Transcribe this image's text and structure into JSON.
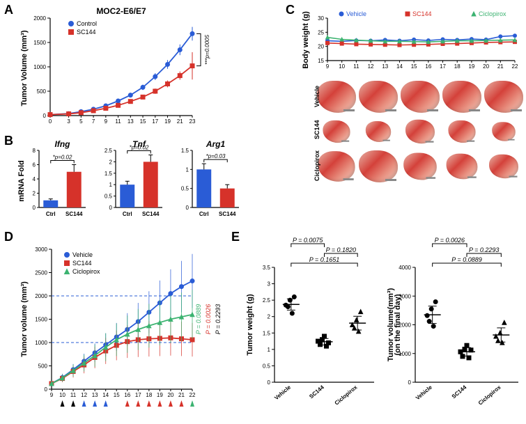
{
  "panelLabels": {
    "A": "A",
    "B": "B",
    "C": "C",
    "D": "D",
    "E": "E"
  },
  "colors": {
    "control": "#2a5cd6",
    "sc144": "#d6322a",
    "ciclopirox": "#3cb371",
    "axis": "#000000",
    "bg": "#ffffff"
  },
  "panelA": {
    "title": "MOC2-E6/E7",
    "ylabel": "Tumor Volume (mm³)",
    "ylim": [
      0,
      2000
    ],
    "ytick": 500,
    "x": [
      0,
      3,
      5,
      7,
      9,
      11,
      13,
      15,
      17,
      19,
      21,
      23
    ],
    "series": [
      {
        "name": "Control",
        "color": "#2a5cd6",
        "marker": "circle",
        "y": [
          20,
          40,
          80,
          130,
          200,
          300,
          420,
          580,
          800,
          1050,
          1350,
          1680
        ],
        "err": [
          5,
          8,
          12,
          18,
          25,
          35,
          45,
          55,
          70,
          90,
          110,
          140
        ]
      },
      {
        "name": "SC144",
        "color": "#d6322a",
        "marker": "square",
        "y": [
          20,
          35,
          60,
          100,
          150,
          210,
          290,
          380,
          500,
          650,
          820,
          1020
        ],
        "err": [
          5,
          7,
          10,
          15,
          20,
          28,
          35,
          45,
          55,
          70,
          85,
          280
        ]
      }
    ],
    "pval": "***p=0.0005"
  },
  "panelB": {
    "ylabel": "mRNA Fold",
    "xcats": [
      "Ctrl",
      "SC144"
    ],
    "charts": [
      {
        "title": "Ifng",
        "ylim": [
          0,
          8
        ],
        "ytick": 2,
        "vals": [
          1.0,
          5.0
        ],
        "err": [
          0.2,
          1.0
        ],
        "p": "*p=0.02"
      },
      {
        "title": "Tnf",
        "ylim": [
          0,
          2.5
        ],
        "ytick": 0.5,
        "vals": [
          1.0,
          2.0
        ],
        "err": [
          0.15,
          0.3
        ],
        "p": "*p=0.02"
      },
      {
        "title": "Arg1",
        "ylim": [
          0,
          1.5
        ],
        "ytick": 0.5,
        "vals": [
          1.0,
          0.5
        ],
        "err": [
          0.15,
          0.1
        ],
        "p": "*p=0.03"
      }
    ],
    "barColors": [
      "#2a5cd6",
      "#d6322a"
    ]
  },
  "panelC": {
    "bw": {
      "ylabel": "Body weight (g)",
      "ylim": [
        15,
        30
      ],
      "ytick": 5,
      "x": [
        9,
        10,
        11,
        12,
        13,
        14,
        15,
        16,
        17,
        18,
        19,
        20,
        21,
        22
      ],
      "series": [
        {
          "name": "Vehicle",
          "color": "#2a5cd6",
          "marker": "circle",
          "y": [
            22.0,
            21.8,
            22.1,
            22.0,
            22.3,
            22.0,
            22.4,
            22.1,
            22.5,
            22.3,
            22.6,
            22.4,
            23.5,
            23.8
          ]
        },
        {
          "name": "SC144",
          "color": "#d6322a",
          "marker": "square",
          "y": [
            21.2,
            21.0,
            20.8,
            20.7,
            20.6,
            20.5,
            20.6,
            20.7,
            20.9,
            21.0,
            21.2,
            21.4,
            21.5,
            21.6
          ]
        },
        {
          "name": "Ciclopirox",
          "color": "#3cb371",
          "marker": "triangle",
          "y": [
            23.2,
            22.5,
            22.2,
            22.0,
            21.8,
            21.8,
            21.7,
            21.6,
            21.8,
            22.0,
            22.0,
            22.1,
            22.2,
            22.3
          ]
        }
      ]
    },
    "rows": [
      "Vehicle",
      "SC144",
      "Ciclopirox"
    ]
  },
  "panelD": {
    "ylabel": "Tumor volume (mm³)",
    "ylim": [
      0,
      3000
    ],
    "ytick": 500,
    "x": [
      9,
      10,
      11,
      12,
      13,
      14,
      15,
      16,
      17,
      18,
      19,
      20,
      21,
      22
    ],
    "refLines": [
      1000,
      2000
    ],
    "series": [
      {
        "name": "Vehicle",
        "color": "#2a5cd6",
        "marker": "circle",
        "y": [
          120,
          250,
          420,
          600,
          780,
          950,
          1120,
          1280,
          1450,
          1650,
          1850,
          2050,
          2200,
          2320
        ],
        "err": [
          50,
          80,
          120,
          160,
          200,
          250,
          300,
          350,
          400,
          450,
          480,
          520,
          550,
          580
        ]
      },
      {
        "name": "SC144",
        "color": "#d6322a",
        "marker": "square",
        "y": [
          120,
          230,
          380,
          520,
          680,
          820,
          940,
          1020,
          1060,
          1080,
          1090,
          1100,
          1080,
          1060
        ],
        "err": [
          50,
          80,
          130,
          180,
          230,
          280,
          320,
          350,
          370,
          380,
          380,
          380,
          370,
          360
        ]
      },
      {
        "name": "Ciclopirox",
        "color": "#3cb371",
        "marker": "triangle",
        "y": [
          120,
          240,
          400,
          560,
          720,
          900,
          1060,
          1180,
          1280,
          1360,
          1430,
          1500,
          1550,
          1600
        ],
        "err": [
          50,
          80,
          130,
          180,
          240,
          300,
          350,
          400,
          440,
          470,
          490,
          510,
          520,
          530
        ]
      }
    ],
    "pvals": [
      {
        "text": "P = 0.0889",
        "color": "#3cb371"
      },
      {
        "text": "P = 0.0026",
        "color": "#d6322a"
      },
      {
        "text": "P = 0.2293",
        "color": "#000000"
      }
    ],
    "arrows": [
      {
        "x": 10,
        "color": "#000"
      },
      {
        "x": 11,
        "color": "#000"
      },
      {
        "x": 12,
        "color": "#2a5cd6"
      },
      {
        "x": 13,
        "color": "#2a5cd6"
      },
      {
        "x": 14,
        "color": "#2a5cd6"
      },
      {
        "x": 16,
        "color": "#d6322a"
      },
      {
        "x": 17,
        "color": "#d6322a"
      },
      {
        "x": 18,
        "color": "#d6322a"
      },
      {
        "x": 19,
        "color": "#d6322a"
      },
      {
        "x": 20,
        "color": "#d6322a"
      },
      {
        "x": 21,
        "color": "#d6322a"
      },
      {
        "x": 22,
        "color": "#3cb371"
      }
    ]
  },
  "panelE": {
    "cats": [
      "Vehicle",
      "SC144",
      "Ciclopirox"
    ],
    "markers": [
      "circle",
      "square",
      "triangle"
    ],
    "weight": {
      "ylabel": "Tumor weight (g)",
      "ylim": [
        0,
        3.5
      ],
      "ytick": 0.5,
      "data": [
        [
          2.35,
          2.3,
          2.5,
          2.1,
          2.6
        ],
        [
          1.25,
          1.15,
          1.3,
          1.4,
          1.1,
          1.2
        ],
        [
          1.75,
          1.65,
          1.9,
          1.55,
          2.15
        ]
      ],
      "pvals": [
        {
          "i": 0,
          "j": 1,
          "text": "P = 0.0075"
        },
        {
          "i": 1,
          "j": 2,
          "text": "P = 0.1820"
        },
        {
          "i": 0,
          "j": 2,
          "text": "P = 0.1651"
        }
      ]
    },
    "volume": {
      "ylabel": "Tumor volume(mm³)\n(on the final day)",
      "ylim": [
        0,
        4000
      ],
      "ytick": 1000,
      "data": [
        [
          2320,
          2120,
          2550,
          1950,
          2800
        ],
        [
          1060,
          900,
          1150,
          1280,
          850,
          1120
        ],
        [
          1600,
          1450,
          1720,
          1380,
          2080
        ]
      ],
      "pvals": [
        {
          "i": 0,
          "j": 1,
          "text": "P = 0.0026"
        },
        {
          "i": 1,
          "j": 2,
          "text": "P = 0.2293"
        },
        {
          "i": 0,
          "j": 2,
          "text": "P = 0.0889"
        }
      ]
    }
  }
}
